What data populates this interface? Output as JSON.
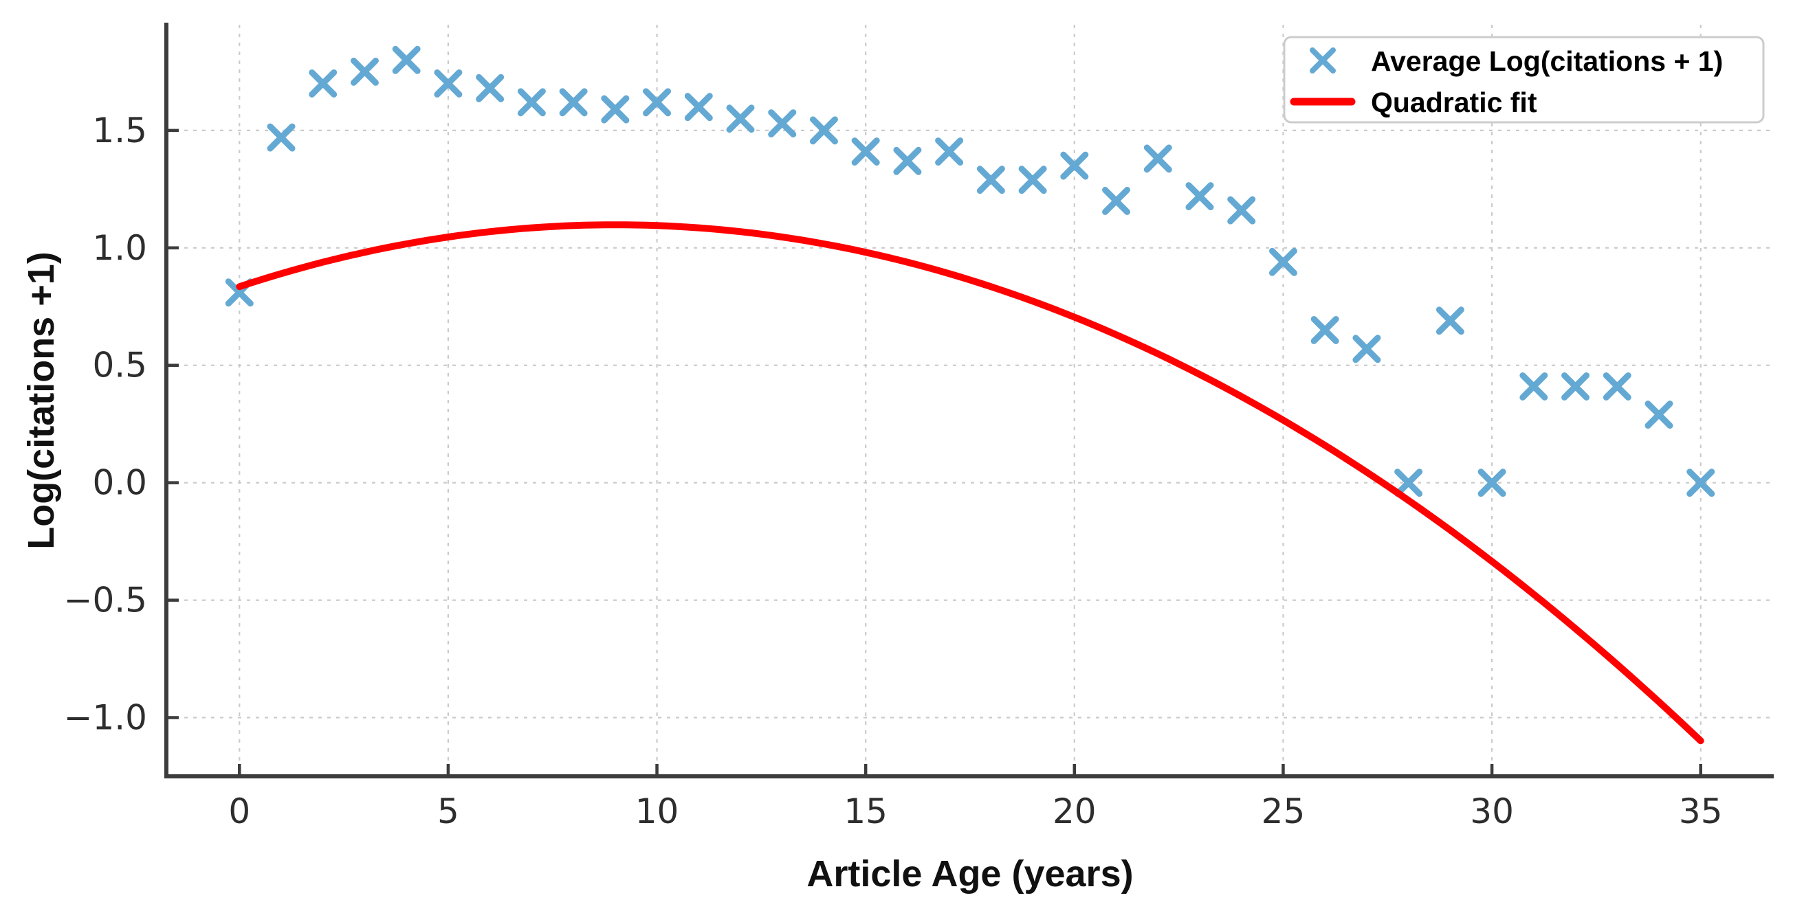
{
  "figure": {
    "background": "#ffffff",
    "spine_color": "#3c3c3c",
    "tick_color": "#3c3c3c",
    "grid_color": "#cbcbcb",
    "tick_label_color": "#2d2d2d",
    "legend_border_color": "#cccccc",
    "legend_background": "#ffffff",
    "marker_color": "#64a9d3",
    "fit_color": "#ff0000"
  },
  "chart_data": {
    "type": "scatter",
    "title": "",
    "xlabel": "Article Age (years)",
    "ylabel": "Log(citations +1)",
    "grid": true,
    "legend_position": "upper right",
    "xlim": [
      -1.75,
      36.75
    ],
    "ylim": [
      -1.25,
      1.95
    ],
    "x_ticks": [
      0,
      5,
      10,
      15,
      20,
      25,
      30,
      35
    ],
    "x_tick_labels": [
      "0",
      "5",
      "10",
      "15",
      "20",
      "25",
      "30",
      "35"
    ],
    "y_ticks": [
      -1.0,
      -0.5,
      0.0,
      0.5,
      1.0,
      1.5
    ],
    "y_tick_labels": [
      "−1.0",
      "−0.5",
      "0.0",
      "0.5",
      "1.0",
      "1.5"
    ],
    "legend": {
      "entries": [
        {
          "label": "Average Log(citations + 1)",
          "marker": "x",
          "color": "#64a9d3"
        },
        {
          "label": "Quadratic fit",
          "marker": "line",
          "color": "#ff0000"
        }
      ]
    },
    "series": [
      {
        "name": "Average Log(citations + 1)",
        "type": "scatter",
        "marker": "x",
        "color": "#64a9d3",
        "x": [
          0,
          1,
          2,
          3,
          4,
          5,
          6,
          7,
          8,
          9,
          10,
          11,
          12,
          13,
          14,
          15,
          16,
          17,
          18,
          19,
          20,
          21,
          22,
          23,
          24,
          25,
          26,
          27,
          28,
          29,
          30,
          31,
          32,
          33,
          34,
          35
        ],
        "y": [
          0.81,
          1.47,
          1.7,
          1.75,
          1.8,
          1.7,
          1.68,
          1.62,
          1.62,
          1.59,
          1.62,
          1.6,
          1.55,
          1.53,
          1.5,
          1.41,
          1.37,
          1.41,
          1.29,
          1.29,
          1.35,
          1.2,
          1.38,
          1.22,
          1.16,
          0.94,
          0.65,
          0.57,
          0.0,
          0.69,
          0.0,
          0.41,
          0.41,
          0.41,
          0.29,
          0.0
        ]
      },
      {
        "name": "Quadratic fit",
        "type": "line",
        "color": "#ff0000",
        "x_range": [
          0,
          35
        ],
        "quadratic_coefficients": {
          "intercept": 0.835,
          "linear": 0.0585,
          "quadratic": -0.00325
        }
      }
    ]
  }
}
